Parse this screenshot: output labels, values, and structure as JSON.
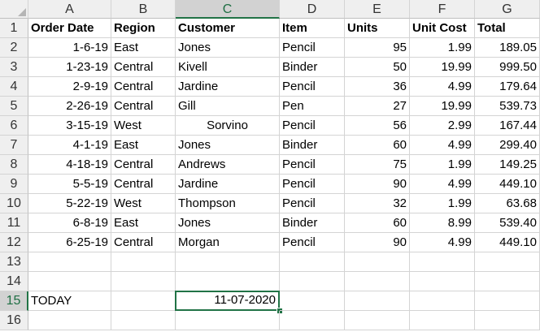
{
  "columns": [
    "A",
    "B",
    "C",
    "D",
    "E",
    "F",
    "G"
  ],
  "selected_column": "C",
  "selected_row": "15",
  "rows": [
    {
      "num": "1",
      "cells": [
        "Order Date",
        "Region",
        "Customer",
        "Item",
        "Units",
        "Unit Cost",
        "Total"
      ]
    },
    {
      "num": "2",
      "cells": [
        "1-6-19",
        "East",
        "Jones",
        "Pencil",
        "95",
        "1.99",
        "189.05"
      ]
    },
    {
      "num": "3",
      "cells": [
        "1-23-19",
        "Central",
        "Kivell",
        "Binder",
        "50",
        "19.99",
        "999.50"
      ]
    },
    {
      "num": "4",
      "cells": [
        "2-9-19",
        "Central",
        "Jardine",
        "Pencil",
        "36",
        "4.99",
        "179.64"
      ]
    },
    {
      "num": "5",
      "cells": [
        "2-26-19",
        "Central",
        "Gill",
        "Pen",
        "27",
        "19.99",
        "539.73"
      ]
    },
    {
      "num": "6",
      "cells": [
        "3-15-19",
        "West",
        "Sorvino",
        "Pencil",
        "56",
        "2.99",
        "167.44"
      ]
    },
    {
      "num": "7",
      "cells": [
        "4-1-19",
        "East",
        "Jones",
        "Binder",
        "60",
        "4.99",
        "299.40"
      ]
    },
    {
      "num": "8",
      "cells": [
        "4-18-19",
        "Central",
        "Andrews",
        "Pencil",
        "75",
        "1.99",
        "149.25"
      ]
    },
    {
      "num": "9",
      "cells": [
        "5-5-19",
        "Central",
        "Jardine",
        "Pencil",
        "90",
        "4.99",
        "449.10"
      ]
    },
    {
      "num": "10",
      "cells": [
        "5-22-19",
        "West",
        "Thompson",
        "Pencil",
        "32",
        "1.99",
        "63.68"
      ]
    },
    {
      "num": "11",
      "cells": [
        "6-8-19",
        "East",
        "Jones",
        "Binder",
        "60",
        "8.99",
        "539.40"
      ]
    },
    {
      "num": "12",
      "cells": [
        "6-25-19",
        "Central",
        "Morgan",
        "Pencil",
        "90",
        "4.99",
        "449.10"
      ]
    },
    {
      "num": "13",
      "cells": [
        "",
        "",
        "",
        "",
        "",
        "",
        ""
      ]
    },
    {
      "num": "14",
      "cells": [
        "",
        "",
        "",
        "",
        "",
        "",
        ""
      ]
    },
    {
      "num": "15",
      "cells": [
        "TODAY",
        "",
        "11-07-2020",
        "",
        "",
        "",
        ""
      ]
    },
    {
      "num": "16",
      "cells": [
        "",
        "",
        "",
        "",
        "",
        "",
        ""
      ]
    }
  ],
  "accent_color": "#217346"
}
